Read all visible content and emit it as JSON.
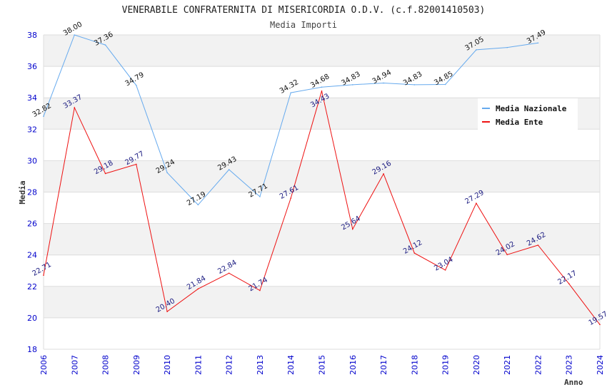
{
  "chart_data": {
    "type": "line",
    "title": "VENERABILE CONFRATERNITA DI MISERICORDIA O.D.V. (c.f.82001410503)",
    "subtitle": "Media Importi",
    "xlabel": "Anno",
    "ylabel": "Media",
    "ylim": [
      18,
      38
    ],
    "yticks": [
      18,
      20,
      22,
      24,
      26,
      28,
      30,
      32,
      34,
      36,
      38
    ],
    "grid": true,
    "legend_position": "top-right",
    "x": [
      2006,
      2007,
      2008,
      2009,
      2010,
      2011,
      2012,
      2013,
      2014,
      2015,
      2016,
      2017,
      2018,
      2019,
      2020,
      2021,
      2022,
      2023,
      2024
    ],
    "series": [
      {
        "name": "Media Nazionale",
        "color": "#66aaee",
        "label_color": "#111111",
        "values": [
          32.82,
          38.0,
          37.36,
          34.79,
          29.24,
          27.19,
          29.43,
          27.71,
          34.32,
          34.68,
          34.83,
          34.94,
          34.83,
          34.85,
          37.05,
          37.2,
          37.49,
          null,
          null
        ],
        "labels": [
          "32.82",
          "38.00",
          "37.36",
          "34.79",
          "29.24",
          "27.19",
          "29.43",
          "27.71",
          "34.32",
          "34.68",
          "34.83",
          "34.94",
          "34.83",
          "34.85",
          "37.05",
          "",
          "37.49",
          "",
          ""
        ]
      },
      {
        "name": "Media Ente",
        "color": "#ee1111",
        "label_color": "#1a1a80",
        "values": [
          22.71,
          33.37,
          29.18,
          29.77,
          20.4,
          21.84,
          22.84,
          21.74,
          27.61,
          34.43,
          25.64,
          29.16,
          24.12,
          23.04,
          27.29,
          24.02,
          24.62,
          22.17,
          19.57
        ],
        "labels": [
          "22.71",
          "33.37",
          "29.18",
          "29.77",
          "20.40",
          "21.84",
          "22.84",
          "21.74",
          "27.61",
          "34.43",
          "25.64",
          "29.16",
          "24.12",
          "23.04",
          "27.29",
          "24.02",
          "24.62",
          "22.17",
          "19.57"
        ]
      }
    ]
  },
  "colors": {
    "band_gray": "#f2f2f2",
    "grid": "#dddddd",
    "tick_text": "#0000cc"
  }
}
